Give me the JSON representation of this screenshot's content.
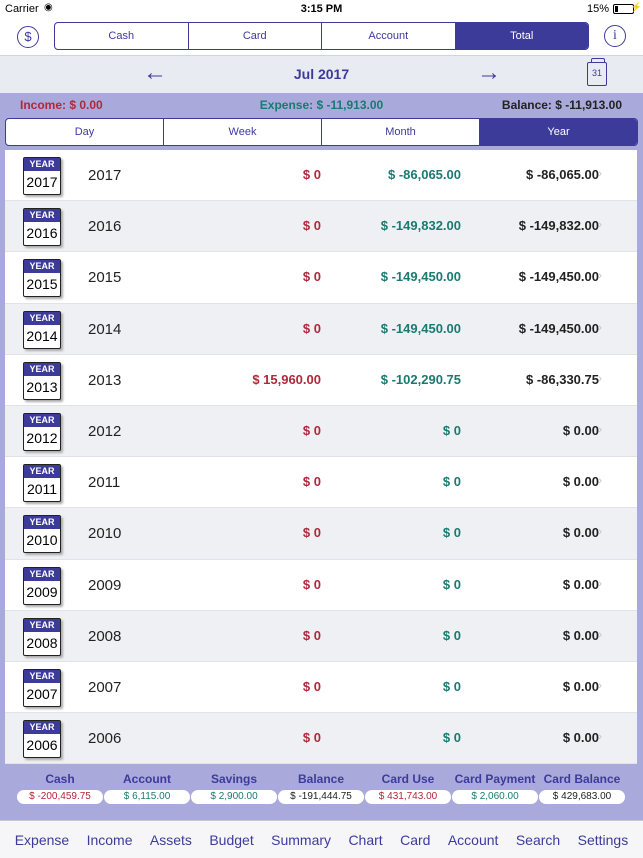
{
  "status_bar": {
    "carrier": "Carrier",
    "time": "3:15 PM",
    "battery": "15%"
  },
  "header": {
    "segments": [
      "Cash",
      "Card",
      "Account",
      "Total"
    ],
    "active_segment": "Total"
  },
  "month_nav": {
    "month": "Jul 2017"
  },
  "summary": {
    "income": "Income: $ 0.00",
    "expense": "Expense: $ -11,913.00",
    "balance": "Balance: $ -11,913.00"
  },
  "periods": {
    "items": [
      "Day",
      "Week",
      "Month",
      "Year"
    ],
    "active": "Year"
  },
  "year_icon_label": "YEAR",
  "rows": [
    {
      "year": "2017",
      "income": "$ 0",
      "expense": "$ -86,065.00",
      "balance": "$ -86,065.00"
    },
    {
      "year": "2016",
      "income": "$ 0",
      "expense": "$ -149,832.00",
      "balance": "$ -149,832.00"
    },
    {
      "year": "2015",
      "income": "$ 0",
      "expense": "$ -149,450.00",
      "balance": "$ -149,450.00"
    },
    {
      "year": "2014",
      "income": "$ 0",
      "expense": "$ -149,450.00",
      "balance": "$ -149,450.00"
    },
    {
      "year": "2013",
      "income": "$ 15,960.00",
      "expense": "$ -102,290.75",
      "balance": "$ -86,330.75"
    },
    {
      "year": "2012",
      "income": "$ 0",
      "expense": "$ 0",
      "balance": "$ 0.00"
    },
    {
      "year": "2011",
      "income": "$ 0",
      "expense": "$ 0",
      "balance": "$ 0.00"
    },
    {
      "year": "2010",
      "income": "$ 0",
      "expense": "$ 0",
      "balance": "$ 0.00"
    },
    {
      "year": "2009",
      "income": "$ 0",
      "expense": "$ 0",
      "balance": "$ 0.00"
    },
    {
      "year": "2008",
      "income": "$ 0",
      "expense": "$ 0",
      "balance": "$ 0.00"
    },
    {
      "year": "2007",
      "income": "$ 0",
      "expense": "$ 0",
      "balance": "$ 0.00"
    },
    {
      "year": "2006",
      "income": "$ 0",
      "expense": "$ 0",
      "balance": "$ 0.00"
    }
  ],
  "totals": [
    {
      "label": "Cash",
      "value": "$ -200,459.75",
      "tone": "red"
    },
    {
      "label": "Account",
      "value": "$ 6,115.00",
      "tone": "green"
    },
    {
      "label": "Savings",
      "value": "$ 2,900.00",
      "tone": "green"
    },
    {
      "label": "Balance",
      "value": "$ -191,444.75",
      "tone": "dark"
    },
    {
      "label": "Card Use",
      "value": "$ 431,743.00",
      "tone": "red"
    },
    {
      "label": "Card Payment",
      "value": "$ 2,060.00",
      "tone": "green"
    },
    {
      "label": "Card Balance",
      "value": "$ 429,683.00",
      "tone": "dark"
    }
  ],
  "tabs": [
    "Expense",
    "Income",
    "Assets",
    "Budget",
    "Summary",
    "Chart",
    "Card",
    "Account",
    "Search",
    "Settings"
  ],
  "colors": {
    "accent": "#3d3b9a",
    "band": "#a9a9dc",
    "income_red": "#b0283a",
    "expense_teal": "#1a7a70"
  },
  "icons": {
    "left": "dollar-circle-icon",
    "right": "info-icon",
    "calendar": "calendar-icon"
  }
}
